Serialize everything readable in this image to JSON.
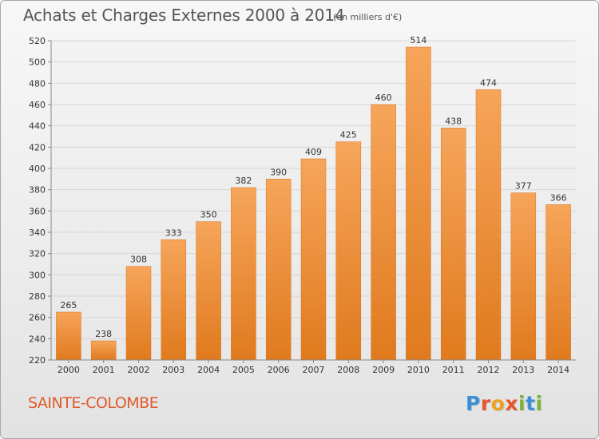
{
  "header": {
    "title": "Achats et Charges Externes 2000 à 2014",
    "subtitle": "(en milliers d'€)"
  },
  "footer": {
    "commune": "SAINTE-COLOMBE",
    "brand": {
      "letters": [
        "P",
        "r",
        "o",
        "x",
        "i",
        "t",
        "i"
      ],
      "colors": [
        "#3a8fd6",
        "#e8562a",
        "#f0a020",
        "#e8562a",
        "#7ab43c",
        "#3a8fd6",
        "#7ab43c"
      ]
    }
  },
  "colors": {
    "bar_light": "#f6a55a",
    "bar_dark": "#e07a1e",
    "grid": "#d6d6d6",
    "axis": "#888888"
  },
  "chart_data": {
    "type": "bar",
    "title": "Achats et Charges Externes 2000 à 2014",
    "subtitle": "(en milliers d'€)",
    "xlabel": "",
    "ylabel": "",
    "categories": [
      "2000",
      "2001",
      "2002",
      "2003",
      "2004",
      "2005",
      "2006",
      "2007",
      "2008",
      "2009",
      "2010",
      "2011",
      "2012",
      "2013",
      "2014"
    ],
    "values": [
      265,
      238,
      308,
      333,
      350,
      382,
      390,
      409,
      425,
      460,
      514,
      438,
      474,
      377,
      366
    ],
    "ylim": [
      220,
      520
    ],
    "yticks": [
      220,
      240,
      260,
      280,
      300,
      320,
      340,
      360,
      380,
      400,
      420,
      440,
      460,
      480,
      500,
      520
    ],
    "grid": true,
    "legend": "none"
  }
}
